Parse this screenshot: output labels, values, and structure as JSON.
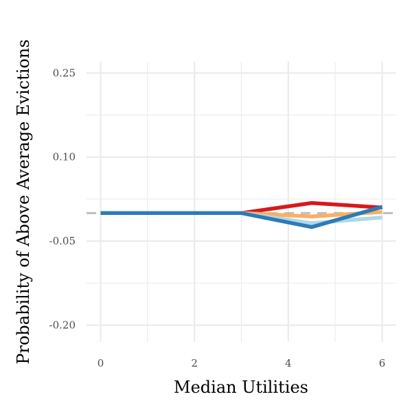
{
  "chart_data": {
    "type": "line",
    "title": "",
    "xlabel": "Median Utilities",
    "ylabel": "Probability of Above Average Evictions",
    "xlim": [
      -0.3,
      6.3
    ],
    "ylim": [
      -0.23,
      0.27
    ],
    "x_ticks": [
      0,
      2,
      4,
      6
    ],
    "x_tick_labels": [
      "0",
      "2",
      "4",
      "6"
    ],
    "y_ticks": [
      -0.2,
      -0.05,
      0.1,
      0.25
    ],
    "y_tick_labels": [
      "-0.20",
      "-0.05",
      "0.10",
      "0.25"
    ],
    "grid": true,
    "legend": "none",
    "reference_line": {
      "y": 0.0,
      "style": "dashed",
      "color": "#bdbdbd"
    },
    "series": [
      {
        "color": "#d7191c",
        "x": [
          0,
          3,
          4.5,
          6
        ],
        "y": [
          0.0,
          0.0,
          0.018,
          0.01
        ]
      },
      {
        "color": "#fdae61",
        "x": [
          0,
          3,
          4.5,
          6
        ],
        "y": [
          0.0,
          0.0,
          -0.006,
          0.002
        ]
      },
      {
        "color": "#abd9e9",
        "x": [
          0,
          3,
          4.5,
          6
        ],
        "y": [
          0.0,
          0.0,
          -0.018,
          -0.008
        ]
      },
      {
        "color": "#2c7bb6",
        "x": [
          0,
          3,
          4.5,
          6
        ],
        "y": [
          0.0,
          0.0,
          -0.025,
          0.011
        ]
      }
    ]
  }
}
